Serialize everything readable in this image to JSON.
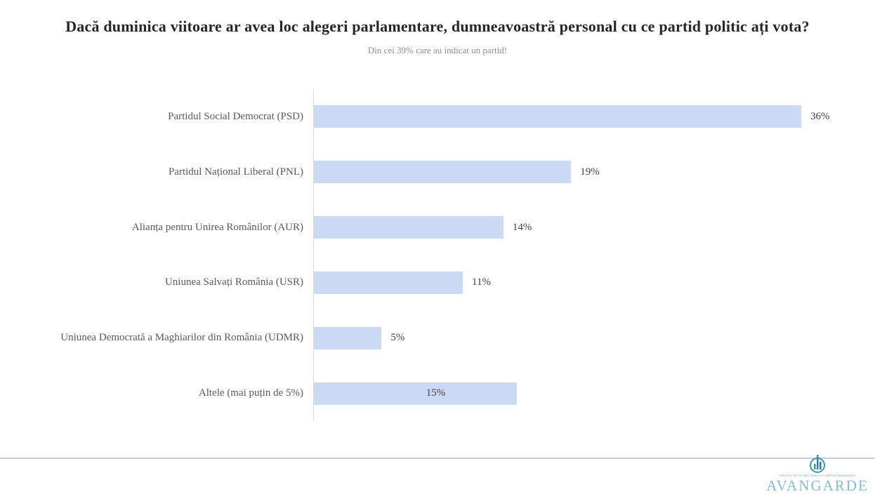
{
  "chart_data": {
    "type": "bar",
    "orientation": "horizontal",
    "title": "Dacă duminica viitoare ar avea loc alegeri parlamentare, dumneavoastră personal cu ce partid politic ați vota?",
    "subtitle": "Din cei 39% care au indicat un partid!",
    "categories": [
      "Partidul Social Democrat (PSD)",
      "Partidul Național Liberal (PNL)",
      "Alianța pentru Unirea Românilor (AUR)",
      "Uniunea Salvați România (USR)",
      "Uniunea Democrată a Maghiarilor din România (UDMR)",
      "Altele (mai puțin de 5%)"
    ],
    "values": [
      36,
      19,
      14,
      11,
      5,
      15
    ],
    "value_labels": [
      "36%",
      "19%",
      "14%",
      "11%",
      "5%",
      "15%"
    ],
    "label_positions": [
      "outside",
      "outside",
      "outside",
      "outside",
      "outside",
      "inside"
    ],
    "bar_color": "#ccd9f4",
    "axis_color": "#d9d9d9",
    "grid": false,
    "legend": false,
    "xlim": [
      0,
      41.5
    ],
    "xlabel": "",
    "ylabel": ""
  },
  "footer": {
    "logo_tagline": "GRUPUL DE STUDII SOCIO-COMPORTAMENTALE",
    "logo_name": "AVANGARDE",
    "logo_teal": "#2f9fa4",
    "logo_blue": "#2f7fc1",
    "rule_color": "#c9cde2"
  }
}
